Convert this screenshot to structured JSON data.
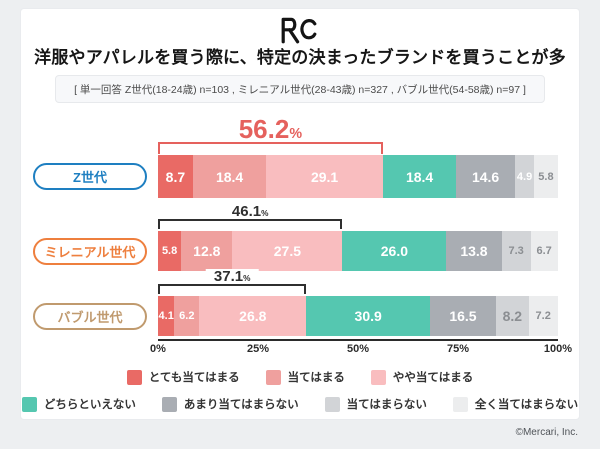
{
  "page": {
    "background": "#edeff1",
    "card_background": "#ffffff",
    "footer_text": "©Mercari, Inc."
  },
  "header": {
    "logo_text": "RC",
    "title": "洋服やアパレルを買う際に、特定の決まったブランドを買うことが多い。",
    "subtitle": "[ 単一回答 Z世代(18-24歳) n=103 , ミレニアル世代(28-43歳) n=327 , バブル世代(54-58歳) n=97 ]"
  },
  "chart_data": {
    "type": "bar",
    "stacked": true,
    "orientation": "horizontal",
    "title": "洋服やアパレルを買う際に、特定の決まったブランドを買うことが多い。",
    "xlim": [
      0,
      100
    ],
    "x_ticks": [
      "0%",
      "25%",
      "50%",
      "75%",
      "100%"
    ],
    "grid": false,
    "legend_position": "bottom",
    "legend": [
      {
        "label": "とても当てはまる",
        "color": "#e96a65"
      },
      {
        "label": "当てはまる",
        "color": "#efa09e"
      },
      {
        "label": "やや当てはまる",
        "color": "#f9bdbf"
      },
      {
        "label": "どちらといえない",
        "color": "#55c7b0"
      },
      {
        "label": "あまり当てはまらない",
        "color": "#a9adb3"
      },
      {
        "label": "当てはまらない",
        "color": "#d2d4d7"
      },
      {
        "label": "全く当てはまらない",
        "color": "#ecedee"
      }
    ],
    "rows": [
      {
        "label": "Z世代",
        "pill_color": "#1e7fc1",
        "values": [
          8.7,
          18.4,
          29.1,
          18.4,
          14.6,
          4.9,
          5.8
        ],
        "white_labels": 6,
        "bracket": {
          "total": "56.2",
          "span": 56.2,
          "color": "#e5615d",
          "emphasis": true
        }
      },
      {
        "label": "ミレニアル世代",
        "pill_color": "#ee7f3e",
        "values": [
          5.8,
          12.8,
          27.5,
          26.0,
          13.8,
          7.3,
          6.7
        ],
        "white_labels": 5,
        "bracket": {
          "total": "46.1",
          "span": 46.1,
          "color": "#2f2f2f",
          "emphasis": false
        }
      },
      {
        "label": "バブル世代",
        "pill_color": "#c09a6e",
        "values": [
          4.1,
          6.2,
          26.8,
          30.9,
          16.5,
          8.2,
          7.2
        ],
        "white_labels": 5,
        "bracket": {
          "total": "37.1",
          "span": 37.1,
          "color": "#2f2f2f",
          "emphasis": false
        }
      }
    ],
    "muted_label_color": "#8b8e92",
    "percent_suffix": "%"
  }
}
